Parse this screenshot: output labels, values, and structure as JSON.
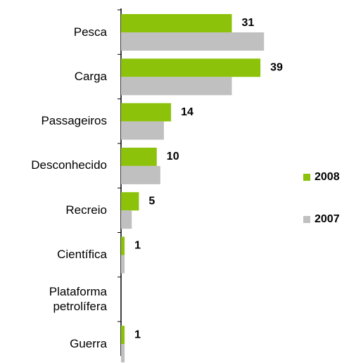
{
  "chart_data": {
    "type": "hbar",
    "categories": [
      "Pesca",
      "Carga",
      "Passageiros",
      "Desconhecido",
      "Recreio",
      "Científica",
      "Plataforma\npetrolífera",
      "Guerra"
    ],
    "series": [
      {
        "name": "2008",
        "color": "#8cc20a",
        "values": [
          31,
          39,
          14,
          10,
          5,
          1,
          0,
          1
        ],
        "value_labels": [
          "31",
          "39",
          "14",
          "10",
          "5",
          "1",
          null,
          "1"
        ]
      },
      {
        "name": "2007",
        "color": "#c0c0c0",
        "values": [
          40,
          31,
          12,
          11,
          3,
          1,
          0,
          1
        ]
      }
    ],
    "legend": "right"
  }
}
